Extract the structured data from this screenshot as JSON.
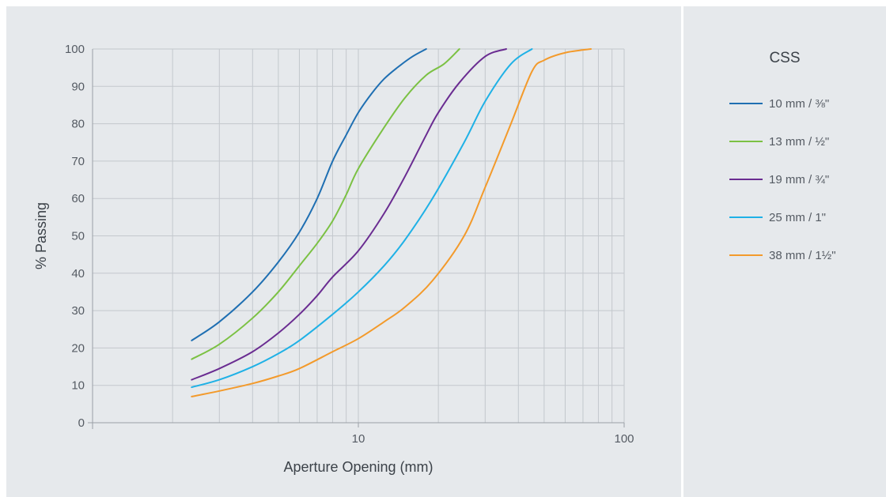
{
  "chart_data": {
    "type": "line",
    "xlabel": "Aperture Opening (mm)",
    "ylabel": "% Passing",
    "xscale": "log",
    "xlim": [
      1,
      100
    ],
    "ylim": [
      0,
      100
    ],
    "grid": true,
    "legend_title": "CSS",
    "legend_position": "right",
    "x_tick_labels": [
      "10",
      "100"
    ],
    "y_tick_labels": [
      "0",
      "10",
      "20",
      "30",
      "40",
      "50",
      "60",
      "70",
      "80",
      "90",
      "100"
    ],
    "series": [
      {
        "name": "10 mm / ⅜\"",
        "color": "#1f6fb2",
        "points": [
          [
            2.36,
            22
          ],
          [
            3,
            27
          ],
          [
            4,
            35
          ],
          [
            5,
            43
          ],
          [
            6,
            51
          ],
          [
            7,
            60
          ],
          [
            8,
            70
          ],
          [
            9,
            77
          ],
          [
            10,
            83
          ],
          [
            11.2,
            88
          ],
          [
            12.5,
            92
          ],
          [
            14,
            95
          ],
          [
            16,
            98
          ],
          [
            18,
            100
          ]
        ]
      },
      {
        "name": "13 mm / ½\"",
        "color": "#7bc143",
        "points": [
          [
            2.36,
            17
          ],
          [
            3,
            21
          ],
          [
            4,
            28
          ],
          [
            5,
            35
          ],
          [
            6,
            42
          ],
          [
            7,
            48
          ],
          [
            8,
            54
          ],
          [
            9,
            61
          ],
          [
            10,
            68
          ],
          [
            12.5,
            79
          ],
          [
            15,
            87
          ],
          [
            18,
            93
          ],
          [
            21,
            96
          ],
          [
            24,
            100
          ]
        ]
      },
      {
        "name": "19 mm / ¾\"",
        "color": "#6a2c91",
        "points": [
          [
            2.36,
            11.5
          ],
          [
            3,
            14.5
          ],
          [
            4,
            19
          ],
          [
            5,
            24
          ],
          [
            6,
            29
          ],
          [
            7,
            34
          ],
          [
            8,
            39
          ],
          [
            10,
            46
          ],
          [
            12.5,
            56
          ],
          [
            15,
            66
          ],
          [
            18,
            77
          ],
          [
            20,
            83
          ],
          [
            24,
            91
          ],
          [
            30,
            98
          ],
          [
            36,
            100
          ]
        ]
      },
      {
        "name": "25 mm / 1\"",
        "color": "#1fb1e6",
        "points": [
          [
            2.36,
            9.5
          ],
          [
            3,
            11.5
          ],
          [
            4,
            15
          ],
          [
            5,
            18.5
          ],
          [
            6,
            22
          ],
          [
            8,
            29
          ],
          [
            10,
            35
          ],
          [
            12.5,
            42
          ],
          [
            15,
            49
          ],
          [
            19,
            60
          ],
          [
            25,
            75
          ],
          [
            30,
            86
          ],
          [
            37.5,
            96
          ],
          [
            45,
            100
          ]
        ]
      },
      {
        "name": "38 mm / 1½\"",
        "color": "#f39a2b",
        "points": [
          [
            2.36,
            7
          ],
          [
            3,
            8.5
          ],
          [
            4,
            10.5
          ],
          [
            5,
            12.5
          ],
          [
            6,
            14.5
          ],
          [
            8,
            19
          ],
          [
            10,
            22.5
          ],
          [
            12.5,
            27
          ],
          [
            15,
            31
          ],
          [
            19,
            38
          ],
          [
            25,
            50
          ],
          [
            30,
            63
          ],
          [
            37.5,
            80
          ],
          [
            45,
            94
          ],
          [
            50,
            97
          ],
          [
            60,
            99
          ],
          [
            75,
            100
          ]
        ]
      }
    ]
  }
}
